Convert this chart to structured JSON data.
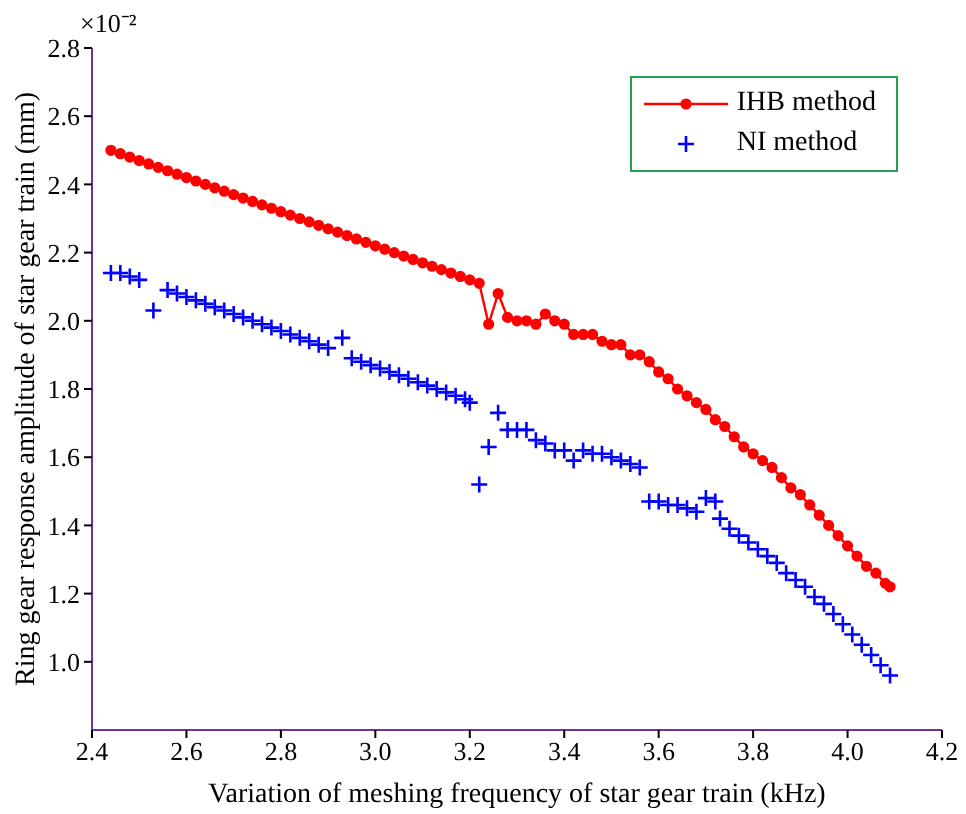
{
  "chart_data": {
    "type": "line",
    "xlabel": "Variation of meshing frequency of star gear train (kHz)",
    "ylabel": "Ring gear response amplitude of star gear train (mm)",
    "annotations": [
      "×10⁻²"
    ],
    "xlim": [
      2.4,
      4.2
    ],
    "xticks": [
      2.4,
      2.6,
      2.8,
      {
        "value": 3,
        "label": "3.0"
      },
      3.2,
      3.4,
      3.6,
      3.8,
      {
        "value": 4,
        "label": "4.0"
      },
      4.2
    ],
    "ylim": [
      0.8,
      2.8
    ],
    "yticks": [
      {
        "value": 1,
        "label": "1.0"
      },
      1.2,
      1.4,
      1.6,
      1.8,
      {
        "value": 2,
        "label": "2.0"
      },
      2.2,
      2.4,
      2.6,
      2.8
    ],
    "grid": false,
    "legend": "top right",
    "series": [
      {
        "name": "IHB method",
        "marker": "circle",
        "line_style": "solid",
        "color": "#ff0000",
        "x": [
          2.44,
          2.46,
          2.48,
          2.5,
          2.52,
          2.54,
          2.56,
          2.58,
          2.6,
          2.62,
          2.64,
          2.66,
          2.68,
          2.7,
          2.72,
          2.74,
          2.76,
          2.78,
          2.8,
          2.82,
          2.84,
          2.86,
          2.88,
          2.9,
          2.92,
          2.94,
          2.96,
          2.98,
          3.0,
          3.02,
          3.04,
          3.06,
          3.08,
          3.1,
          3.12,
          3.14,
          3.16,
          3.18,
          3.2,
          3.22,
          3.24,
          3.26,
          3.28,
          3.3,
          3.32,
          3.34,
          3.36,
          3.38,
          3.4,
          3.42,
          3.44,
          3.46,
          3.48,
          3.5,
          3.52,
          3.54,
          3.56,
          3.58,
          3.6,
          3.62,
          3.64,
          3.66,
          3.68,
          3.7,
          3.72,
          3.74,
          3.76,
          3.78,
          3.8,
          3.82,
          3.84,
          3.86,
          3.88,
          3.9,
          3.92,
          3.94,
          3.96,
          3.98,
          4.0,
          4.02,
          4.04,
          4.06,
          4.08,
          4.09
        ],
        "values": [
          2.5,
          2.49,
          2.48,
          2.47,
          2.46,
          2.45,
          2.44,
          2.43,
          2.42,
          2.41,
          2.4,
          2.39,
          2.38,
          2.37,
          2.36,
          2.35,
          2.34,
          2.33,
          2.32,
          2.31,
          2.3,
          2.29,
          2.28,
          2.27,
          2.26,
          2.25,
          2.24,
          2.23,
          2.22,
          2.21,
          2.2,
          2.19,
          2.18,
          2.17,
          2.16,
          2.15,
          2.14,
          2.13,
          2.12,
          2.11,
          1.99,
          2.08,
          2.01,
          2.0,
          2.0,
          1.99,
          2.02,
          2.0,
          1.99,
          1.96,
          1.96,
          1.96,
          1.94,
          1.93,
          1.93,
          1.9,
          1.9,
          1.88,
          1.85,
          1.83,
          1.8,
          1.78,
          1.76,
          1.74,
          1.71,
          1.69,
          1.66,
          1.63,
          1.61,
          1.59,
          1.57,
          1.54,
          1.51,
          1.49,
          1.46,
          1.43,
          1.4,
          1.37,
          1.34,
          1.31,
          1.28,
          1.26,
          1.23,
          1.22
        ]
      },
      {
        "name": "NI method",
        "type": "scatter",
        "marker": "cross",
        "color": "#0000ff",
        "x": [
          2.44,
          2.46,
          2.48,
          2.5,
          2.53,
          2.56,
          2.58,
          2.6,
          2.62,
          2.64,
          2.66,
          2.68,
          2.7,
          2.72,
          2.74,
          2.76,
          2.78,
          2.8,
          2.82,
          2.84,
          2.86,
          2.88,
          2.9,
          2.93,
          2.95,
          2.97,
          2.99,
          3.01,
          3.03,
          3.05,
          3.07,
          3.09,
          3.11,
          3.13,
          3.15,
          3.17,
          3.19,
          3.2,
          3.22,
          3.24,
          3.26,
          3.28,
          3.3,
          3.32,
          3.34,
          3.36,
          3.38,
          3.4,
          3.42,
          3.44,
          3.46,
          3.48,
          3.5,
          3.52,
          3.54,
          3.56,
          3.58,
          3.6,
          3.62,
          3.64,
          3.66,
          3.68,
          3.7,
          3.72,
          3.73,
          3.75,
          3.77,
          3.79,
          3.81,
          3.83,
          3.85,
          3.87,
          3.89,
          3.91,
          3.93,
          3.95,
          3.97,
          3.99,
          4.01,
          4.03,
          4.05,
          4.07,
          4.09
        ],
        "values": [
          2.14,
          2.14,
          2.13,
          2.12,
          2.03,
          2.09,
          2.08,
          2.07,
          2.06,
          2.05,
          2.04,
          2.03,
          2.02,
          2.01,
          2.0,
          1.99,
          1.98,
          1.97,
          1.96,
          1.95,
          1.94,
          1.93,
          1.92,
          1.95,
          1.89,
          1.88,
          1.87,
          1.86,
          1.85,
          1.84,
          1.83,
          1.82,
          1.81,
          1.8,
          1.79,
          1.78,
          1.77,
          1.76,
          1.52,
          1.63,
          1.73,
          1.68,
          1.68,
          1.68,
          1.65,
          1.64,
          1.62,
          1.62,
          1.59,
          1.62,
          1.61,
          1.61,
          1.6,
          1.59,
          1.58,
          1.57,
          1.47,
          1.47,
          1.46,
          1.46,
          1.45,
          1.44,
          1.48,
          1.47,
          1.42,
          1.39,
          1.37,
          1.35,
          1.33,
          1.31,
          1.29,
          1.26,
          1.24,
          1.22,
          1.19,
          1.17,
          1.14,
          1.11,
          1.08,
          1.05,
          1.02,
          0.99,
          0.96
        ]
      }
    ]
  }
}
